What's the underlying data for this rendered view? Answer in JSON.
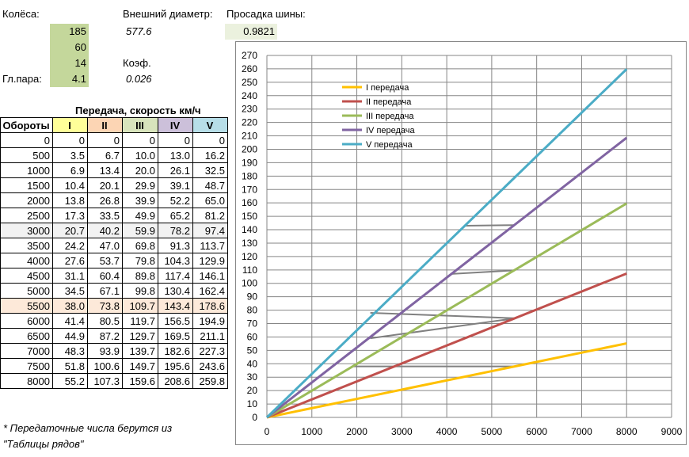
{
  "params": {
    "wheels_label": "Колёса:",
    "outer_diam_label": "Внешний диаметр:",
    "sag_label": "Просадка шины:",
    "width": "185",
    "profile": "60",
    "rim": "14",
    "outer_diam": "577.6",
    "sag": "0.9821",
    "coef_label": "Коэф.",
    "main_pair_label": "Гл.пара:",
    "main_pair": "4.1",
    "coef": "0.026"
  },
  "table": {
    "title": "Передача, скорость км/ч",
    "headers": [
      "Обороты",
      "I",
      "II",
      "III",
      "IV",
      "V"
    ],
    "rows": [
      [
        "0",
        "0",
        "0",
        "0",
        "0",
        "0"
      ],
      [
        "500",
        "3.5",
        "6.7",
        "10.0",
        "13.0",
        "16.2"
      ],
      [
        "1000",
        "6.9",
        "13.4",
        "20.0",
        "26.1",
        "32.5"
      ],
      [
        "1500",
        "10.4",
        "20.1",
        "29.9",
        "39.1",
        "48.7"
      ],
      [
        "2000",
        "13.8",
        "26.8",
        "39.9",
        "52.2",
        "65.0"
      ],
      [
        "2500",
        "17.3",
        "33.5",
        "49.9",
        "65.2",
        "81.2"
      ],
      [
        "3000",
        "20.7",
        "40.2",
        "59.9",
        "78.2",
        "97.4"
      ],
      [
        "3500",
        "24.2",
        "47.0",
        "69.8",
        "91.3",
        "113.7"
      ],
      [
        "4000",
        "27.6",
        "53.7",
        "79.8",
        "104.3",
        "129.9"
      ],
      [
        "4500",
        "31.1",
        "60.4",
        "89.8",
        "117.4",
        "146.1"
      ],
      [
        "5000",
        "34.5",
        "67.1",
        "99.8",
        "130.4",
        "162.4"
      ],
      [
        "5500",
        "38.0",
        "73.8",
        "109.7",
        "143.4",
        "178.6"
      ],
      [
        "6000",
        "41.4",
        "80.5",
        "119.7",
        "156.5",
        "194.9"
      ],
      [
        "6500",
        "44.9",
        "87.2",
        "129.7",
        "169.5",
        "211.1"
      ],
      [
        "7000",
        "48.3",
        "93.9",
        "139.7",
        "182.6",
        "227.3"
      ],
      [
        "7500",
        "51.8",
        "100.6",
        "149.7",
        "195.6",
        "243.6"
      ],
      [
        "8000",
        "55.2",
        "107.3",
        "159.6",
        "208.6",
        "259.8"
      ]
    ]
  },
  "note": {
    "line1": "* Передаточные числа берутся из",
    "line2": "\"Таблицы рядов\""
  },
  "chart_data": {
    "type": "scatter",
    "xlim": [
      0,
      9000
    ],
    "ylim": [
      0,
      270
    ],
    "xticks": [
      0,
      1000,
      2000,
      3000,
      4000,
      5000,
      6000,
      7000,
      8000,
      9000
    ],
    "yticks": [
      0,
      10,
      20,
      30,
      40,
      50,
      60,
      70,
      80,
      90,
      100,
      110,
      120,
      130,
      140,
      150,
      160,
      170,
      180,
      190,
      200,
      210,
      220,
      230,
      240,
      250,
      260,
      270
    ],
    "grid": true,
    "legend_position": "top-left",
    "series": [
      {
        "name": "I передача",
        "color": "#ffc000",
        "x": [
          0,
          8000
        ],
        "y": [
          0,
          55.2
        ]
      },
      {
        "name": "II передача",
        "color": "#c0504d",
        "x": [
          0,
          8000
        ],
        "y": [
          0,
          107.3
        ]
      },
      {
        "name": "III передача",
        "color": "#9bbb59",
        "x": [
          0,
          8000
        ],
        "y": [
          0,
          159.6
        ]
      },
      {
        "name": "IV передача",
        "color": "#8064a2",
        "x": [
          0,
          8000
        ],
        "y": [
          0,
          208.6
        ]
      },
      {
        "name": "V передача",
        "color": "#4bacc6",
        "x": [
          0,
          8000
        ],
        "y": [
          0,
          259.8
        ]
      }
    ],
    "shift_lines": [
      {
        "color": "#808080",
        "x": [
          2900,
          5500
        ],
        "y": [
          20,
          38
        ]
      },
      {
        "color": "#808080",
        "x": [
          1900,
          5500
        ],
        "y": [
          38,
          38
        ]
      },
      {
        "color": "#808080",
        "x": [
          2300,
          5500
        ],
        "y": [
          59,
          73.8
        ]
      },
      {
        "color": "#808080",
        "x": [
          2300,
          5500
        ],
        "y": [
          78,
          74
        ]
      },
      {
        "color": "#808080",
        "x": [
          4100,
          5500
        ],
        "y": [
          107,
          109.7
        ]
      },
      {
        "color": "#808080",
        "x": [
          4400,
          5500
        ],
        "y": [
          143,
          143.4
        ]
      }
    ]
  }
}
